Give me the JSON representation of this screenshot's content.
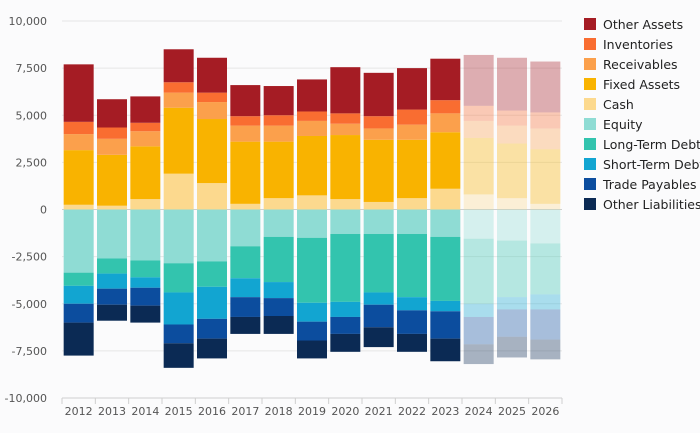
{
  "chart_data": {
    "type": "bar",
    "stacked": true,
    "diverging": true,
    "categories": [
      "2012",
      "2013",
      "2014",
      "2015",
      "2016",
      "2017",
      "2018",
      "2019",
      "2020",
      "2021",
      "2022",
      "2023",
      "2024",
      "2025",
      "2026"
    ],
    "forecast_categories": [
      "2024",
      "2025",
      "2026"
    ],
    "ylim": [
      -10000,
      10000
    ],
    "yticks": [
      10000,
      7500,
      5000,
      2500,
      0,
      -2500,
      -5000,
      -7500,
      -10000
    ],
    "ytick_labels": [
      "10,000",
      "7,500",
      "5,000",
      "2,500",
      "0",
      "-2,500",
      "-5,000",
      "-7,500",
      "-10,000"
    ],
    "grid": true,
    "legend_position": "right",
    "assets": [
      {
        "name": "Cash",
        "color": "#fcd98e",
        "values": [
          250,
          200,
          550,
          1900,
          1400,
          300,
          600,
          750,
          550,
          400,
          600,
          1100,
          800,
          600,
          300
        ]
      },
      {
        "name": "Fixed Assets",
        "color": "#f9b300",
        "values": [
          2900,
          2700,
          2800,
          3500,
          3400,
          3300,
          3000,
          3150,
          3400,
          3300,
          3100,
          3000,
          3000,
          2900,
          2900
        ]
      },
      {
        "name": "Receivables",
        "color": "#fba04c",
        "values": [
          850,
          850,
          800,
          800,
          900,
          850,
          850,
          800,
          600,
          600,
          800,
          1000,
          900,
          950,
          1100
        ]
      },
      {
        "name": "Inventories",
        "color": "#f96d31",
        "values": [
          650,
          600,
          450,
          550,
          500,
          500,
          550,
          500,
          550,
          650,
          800,
          700,
          800,
          800,
          850
        ]
      },
      {
        "name": "Other Assets",
        "color": "#a51c24",
        "values": [
          3050,
          1500,
          1400,
          1750,
          1850,
          1650,
          1550,
          1700,
          2450,
          2300,
          2200,
          2200,
          2700,
          2800,
          2700
        ]
      }
    ],
    "liabilities": [
      {
        "name": "Equity",
        "color": "#8fdcd4",
        "values": [
          -3350,
          -2600,
          -2700,
          -2850,
          -2750,
          -1950,
          -1450,
          -1500,
          -1300,
          -1300,
          -1300,
          -1450,
          -1550,
          -1650,
          -1800
        ]
      },
      {
        "name": "Long-Term Debt",
        "color": "#33c4ae",
        "values": [
          -700,
          -800,
          -900,
          -1550,
          -1350,
          -1700,
          -2400,
          -3450,
          -3600,
          -3100,
          -3350,
          -3400,
          -3450,
          -3000,
          -2700
        ]
      },
      {
        "name": "Short-Term Debt",
        "color": "#12a5d1",
        "values": [
          -950,
          -800,
          -550,
          -1700,
          -1700,
          -1000,
          -850,
          -1000,
          -800,
          -650,
          -700,
          -550,
          -700,
          -650,
          -800
        ]
      },
      {
        "name": "Trade Payables",
        "color": "#0c4d9e",
        "values": [
          -1000,
          -850,
          -950,
          -1000,
          -1050,
          -1050,
          -950,
          -1000,
          -900,
          -1200,
          -1250,
          -1450,
          -1450,
          -1450,
          -1600
        ]
      },
      {
        "name": "Other Liabilities",
        "color": "#0b2a54",
        "values": [
          -1750,
          -850,
          -900,
          -1300,
          -1050,
          -900,
          -950,
          -950,
          -950,
          -1050,
          -950,
          -1200,
          -1050,
          -1100,
          -1050
        ]
      }
    ],
    "legend": [
      "Other Assets",
      "Inventories",
      "Receivables",
      "Fixed Assets",
      "Cash",
      "Equity",
      "Long-Term Debt",
      "Short-Term Debt",
      "Trade Payables",
      "Other Liabilities"
    ],
    "title": "",
    "xlabel": "",
    "ylabel": ""
  }
}
